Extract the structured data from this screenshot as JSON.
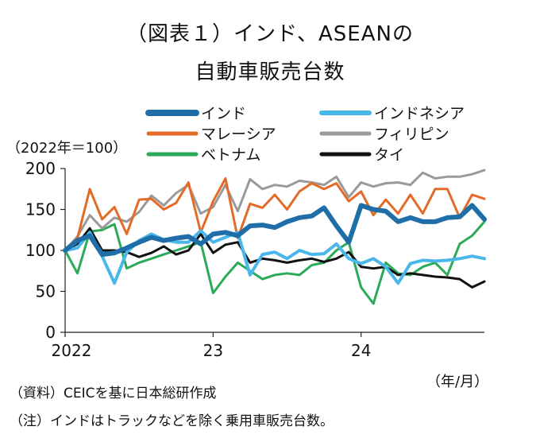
{
  "figure": {
    "title_line1": "（図表１）インド、ASEANの",
    "title_line2": "自動車販売台数",
    "unit_label": "（2022年＝100）",
    "x_unit_label": "（年/月）",
    "source_note": "（資料）CEICを基に日本総研作成",
    "note": "（注）インドはトラックなどを除く乗用車販売台数。"
  },
  "chart_data": {
    "type": "line",
    "ylim": [
      0,
      200
    ],
    "yticks": [
      "0",
      "50",
      "100",
      "150",
      "200"
    ],
    "xticks": [
      {
        "index": 0,
        "label": "2022"
      },
      {
        "index": 12,
        "label": "23"
      },
      {
        "index": 24,
        "label": "24"
      }
    ],
    "x_months": 35,
    "series": [
      {
        "name": "インド",
        "color": "#1f6ea8",
        "width": 6,
        "values": [
          100,
          112,
          118,
          95,
          97,
          103,
          110,
          116,
          112,
          115,
          117,
          108,
          120,
          122,
          118,
          130,
          131,
          128,
          135,
          140,
          142,
          152,
          130,
          110,
          155,
          150,
          148,
          135,
          140,
          135,
          135,
          140,
          141,
          155,
          138
        ]
      },
      {
        "name": "インドネシア",
        "color": "#4ab7ea",
        "width": 4,
        "values": [
          100,
          103,
          122,
          93,
          60,
          98,
          112,
          120,
          113,
          110,
          110,
          124,
          110,
          116,
          122,
          70,
          95,
          98,
          90,
          100,
          95,
          96,
          108,
          90,
          84,
          90,
          80,
          60,
          84,
          88,
          87,
          88,
          90,
          93,
          90
        ]
      },
      {
        "name": "マレーシア",
        "color": "#e46a28",
        "width": 3,
        "values": [
          100,
          115,
          175,
          138,
          153,
          120,
          162,
          163,
          150,
          158,
          183,
          122,
          160,
          188,
          115,
          157,
          152,
          168,
          150,
          172,
          182,
          175,
          182,
          160,
          172,
          143,
          162,
          145,
          168,
          145,
          175,
          175,
          140,
          168,
          163
        ]
      },
      {
        "name": "フィリピン",
        "color": "#9a9a9a",
        "width": 3,
        "values": [
          100,
          117,
          143,
          127,
          140,
          135,
          147,
          167,
          155,
          170,
          180,
          145,
          153,
          180,
          148,
          187,
          175,
          180,
          178,
          185,
          183,
          180,
          190,
          165,
          183,
          178,
          182,
          183,
          180,
          195,
          188,
          190,
          190,
          193,
          198
        ]
      },
      {
        "name": "ベトナム",
        "color": "#2bab58",
        "width": 3,
        "values": [
          100,
          72,
          123,
          125,
          132,
          78,
          85,
          90,
          95,
          100,
          105,
          110,
          48,
          68,
          85,
          75,
          65,
          70,
          72,
          70,
          82,
          85,
          100,
          110,
          55,
          35,
          85,
          72,
          70,
          80,
          85,
          70,
          108,
          118,
          135
        ]
      },
      {
        "name": "タイ",
        "color": "#111111",
        "width": 3,
        "values": [
          100,
          108,
          127,
          100,
          100,
          98,
          92,
          97,
          105,
          95,
          100,
          120,
          97,
          107,
          110,
          85,
          90,
          88,
          85,
          88,
          90,
          86,
          90,
          98,
          80,
          78,
          80,
          70,
          72,
          70,
          68,
          67,
          65,
          55,
          62
        ]
      }
    ]
  },
  "legend": {
    "items": [
      {
        "label": "インド"
      },
      {
        "label": "インドネシア"
      },
      {
        "label": "マレーシア"
      },
      {
        "label": "フィリピン"
      },
      {
        "label": "ベトナム"
      },
      {
        "label": "タイ"
      }
    ]
  }
}
